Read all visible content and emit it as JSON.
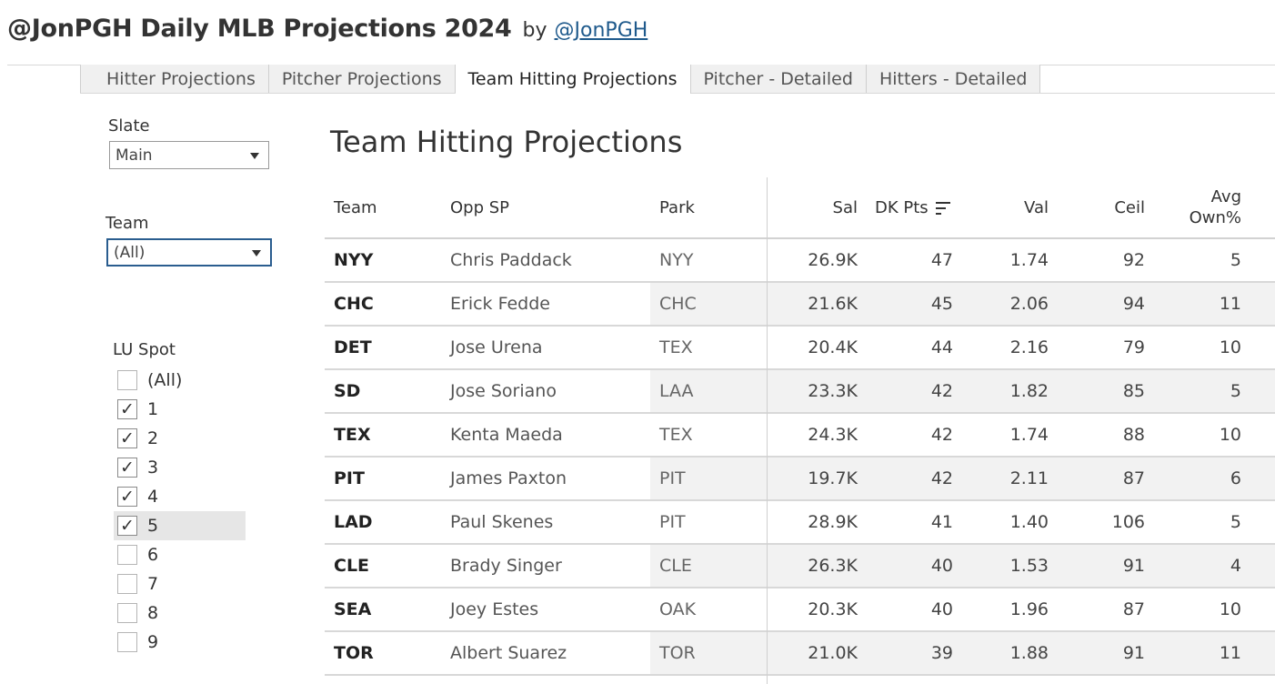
{
  "header": {
    "title": "@JonPGH Daily MLB Projections 2024",
    "by": "by",
    "link": "@JonPGH"
  },
  "tabs": [
    {
      "label": "Hitter Projections",
      "active": false
    },
    {
      "label": "Pitcher Projections",
      "active": false
    },
    {
      "label": "Team Hitting Projections",
      "active": true
    },
    {
      "label": "Pitcher - Detailed",
      "active": false
    },
    {
      "label": "Hitters - Detailed",
      "active": false
    }
  ],
  "filters": {
    "slate": {
      "label": "Slate",
      "value": "Main"
    },
    "team": {
      "label": "Team",
      "value": "(All)"
    },
    "lu_spot": {
      "label": "LU Spot",
      "options": [
        {
          "label": "(All)",
          "checked": false
        },
        {
          "label": "1",
          "checked": true
        },
        {
          "label": "2",
          "checked": true
        },
        {
          "label": "3",
          "checked": true
        },
        {
          "label": "4",
          "checked": true
        },
        {
          "label": "5",
          "checked": true
        },
        {
          "label": "6",
          "checked": false
        },
        {
          "label": "7",
          "checked": false
        },
        {
          "label": "8",
          "checked": false
        },
        {
          "label": "9",
          "checked": false
        }
      ]
    }
  },
  "table": {
    "title": "Team Hitting Projections",
    "columns": {
      "team": "Team",
      "opp_sp": "Opp SP",
      "park": "Park",
      "sal": "Sal",
      "dk_pts": "DK Pts",
      "val": "Val",
      "ceil": "Ceil",
      "avg_own_1": "Avg",
      "avg_own_2": "Own%"
    },
    "rows": [
      {
        "team": "NYY",
        "opp_sp": "Chris Paddack",
        "park": "NYY",
        "sal": "26.9K",
        "dk_pts": "47",
        "val": "1.74",
        "ceil": "92",
        "own": "5"
      },
      {
        "team": "CHC",
        "opp_sp": "Erick Fedde",
        "park": "CHC",
        "sal": "21.6K",
        "dk_pts": "45",
        "val": "2.06",
        "ceil": "94",
        "own": "11"
      },
      {
        "team": "DET",
        "opp_sp": "Jose Urena",
        "park": "TEX",
        "sal": "20.4K",
        "dk_pts": "44",
        "val": "2.16",
        "ceil": "79",
        "own": "10"
      },
      {
        "team": "SD",
        "opp_sp": "Jose Soriano",
        "park": "LAA",
        "sal": "23.3K",
        "dk_pts": "42",
        "val": "1.82",
        "ceil": "85",
        "own": "5"
      },
      {
        "team": "TEX",
        "opp_sp": "Kenta Maeda",
        "park": "TEX",
        "sal": "24.3K",
        "dk_pts": "42",
        "val": "1.74",
        "ceil": "88",
        "own": "10"
      },
      {
        "team": "PIT",
        "opp_sp": "James Paxton",
        "park": "PIT",
        "sal": "19.7K",
        "dk_pts": "42",
        "val": "2.11",
        "ceil": "87",
        "own": "6"
      },
      {
        "team": "LAD",
        "opp_sp": "Paul Skenes",
        "park": "PIT",
        "sal": "28.9K",
        "dk_pts": "41",
        "val": "1.40",
        "ceil": "106",
        "own": "5"
      },
      {
        "team": "CLE",
        "opp_sp": "Brady Singer",
        "park": "CLE",
        "sal": "26.3K",
        "dk_pts": "40",
        "val": "1.53",
        "ceil": "91",
        "own": "4"
      },
      {
        "team": "SEA",
        "opp_sp": "Joey Estes",
        "park": "OAK",
        "sal": "20.3K",
        "dk_pts": "40",
        "val": "1.96",
        "ceil": "87",
        "own": "10"
      },
      {
        "team": "TOR",
        "opp_sp": "Albert Suarez",
        "park": "TOR",
        "sal": "21.0K",
        "dk_pts": "39",
        "val": "1.88",
        "ceil": "91",
        "own": "11"
      }
    ]
  },
  "colors": {
    "link": "#1f5a8c",
    "focus_border": "#2a5d8f",
    "row_shade": "#f2f2f2"
  }
}
